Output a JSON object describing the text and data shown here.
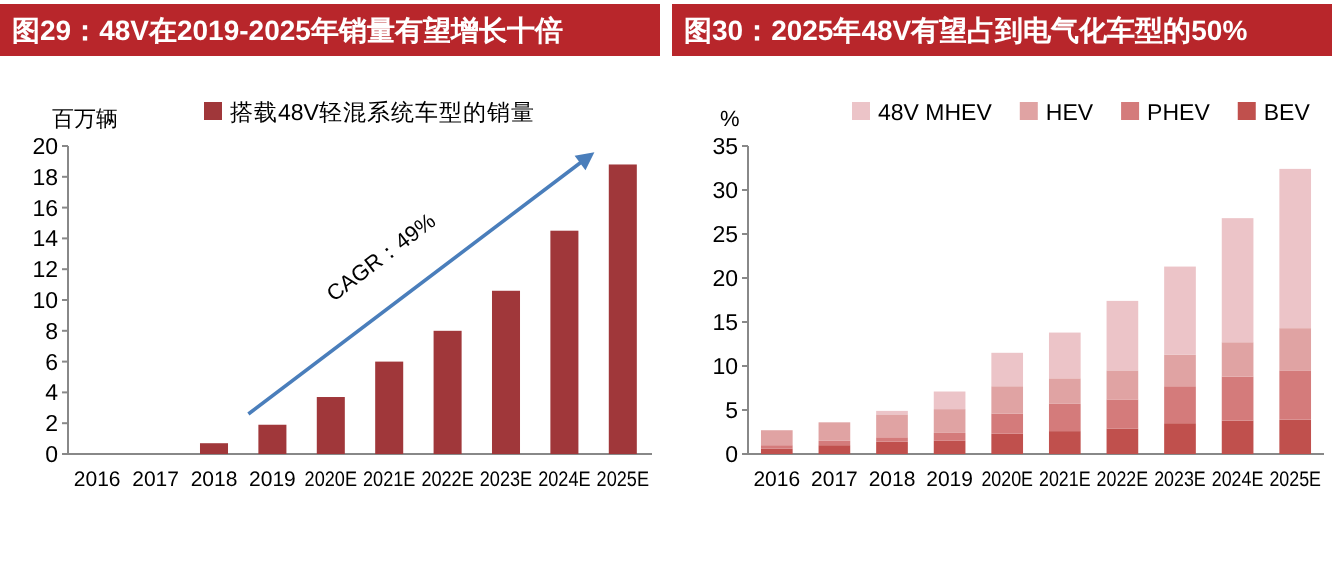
{
  "chart_data": [
    {
      "type": "bar",
      "title": "图29：48V在2019-2025年销量有望增长十倍",
      "ylabel": "百万辆",
      "categories": [
        "2016",
        "2017",
        "2018",
        "2019",
        "2020E",
        "2021E",
        "2022E",
        "2023E",
        "2024E",
        "2025E"
      ],
      "series": [
        {
          "name": "搭载48V轻混系统车型的销量",
          "color": "#a0373a",
          "values": [
            0,
            0,
            0.7,
            1.9,
            3.7,
            6.0,
            8.0,
            10.6,
            14.5,
            18.8
          ]
        }
      ],
      "ylim": [
        0,
        20
      ],
      "yticks": [
        0,
        2,
        4,
        6,
        8,
        10,
        12,
        14,
        16,
        18,
        20
      ],
      "legend": "top",
      "annotations": [
        "CAGR：49%"
      ]
    },
    {
      "type": "bar",
      "title": "图30：2025年48V有望占到电气化车型的50%",
      "ylabel": "%",
      "categories": [
        "2016",
        "2017",
        "2018",
        "2019",
        "2020E",
        "2021E",
        "2022E",
        "2023E",
        "2024E",
        "2025E"
      ],
      "stacked": true,
      "series": [
        {
          "name": "BEV",
          "color": "#c0504d",
          "values": [
            0.6,
            1.0,
            1.4,
            1.5,
            2.3,
            2.6,
            2.9,
            3.5,
            3.8,
            3.9
          ]
        },
        {
          "name": "PHEV",
          "color": "#d47b7b",
          "values": [
            0.4,
            0.5,
            0.5,
            0.9,
            2.3,
            3.1,
            3.3,
            4.2,
            5.0,
            5.6
          ]
        },
        {
          "name": "HEV",
          "color": "#e0a3a3",
          "values": [
            1.7,
            2.1,
            2.6,
            2.7,
            3.1,
            2.9,
            3.3,
            3.6,
            3.9,
            4.8
          ]
        },
        {
          "name": "48V MHEV",
          "color": "#ecc4c8",
          "values": [
            null,
            null,
            0.4,
            2.0,
            3.8,
            5.2,
            7.9,
            10.0,
            14.1,
            18.1
          ]
        }
      ],
      "ylim": [
        0,
        35
      ],
      "yticks": [
        0,
        5,
        10,
        15,
        20,
        25,
        30,
        35
      ],
      "legend": "top"
    }
  ]
}
